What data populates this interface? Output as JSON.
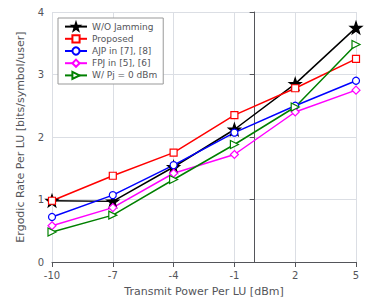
{
  "chart_data": {
    "type": "line",
    "xlabel": "Transmit Power Per LU [dBm]",
    "ylabel": "Ergodic Rate Per LU [bits/symbol/user]",
    "x": [
      -10,
      -7,
      -4,
      -1,
      2,
      5
    ],
    "series": [
      {
        "name": "W/O Jamming",
        "color": "black",
        "marker": "star",
        "values": [
          0.98,
          0.97,
          1.52,
          2.12,
          2.85,
          3.75
        ]
      },
      {
        "name": "Proposed",
        "color": "red",
        "marker": "square",
        "values": [
          0.98,
          1.38,
          1.75,
          2.35,
          2.78,
          3.25
        ]
      },
      {
        "name": "AJP in [7], [8]",
        "color": "blue",
        "marker": "circle",
        "values": [
          0.72,
          1.07,
          1.55,
          2.07,
          2.5,
          2.9
        ]
      },
      {
        "name": "FPJ in [5], [6]",
        "color": "magenta",
        "marker": "diamond",
        "values": [
          0.58,
          0.87,
          1.42,
          1.72,
          2.4,
          2.75
        ]
      },
      {
        "name": "W/ Pj = 0 dBm",
        "color": "green",
        "marker": "triangle-right",
        "values": [
          0.48,
          0.75,
          1.32,
          1.88,
          2.48,
          3.48
        ]
      }
    ],
    "xlim": [
      -10,
      5
    ],
    "ylim": [
      0,
      4
    ],
    "xticks": [
      -10,
      -7,
      -4,
      -1,
      2,
      5
    ],
    "yticks": [
      0,
      1,
      2,
      3,
      4
    ],
    "grid": true,
    "legend": "upper left"
  }
}
